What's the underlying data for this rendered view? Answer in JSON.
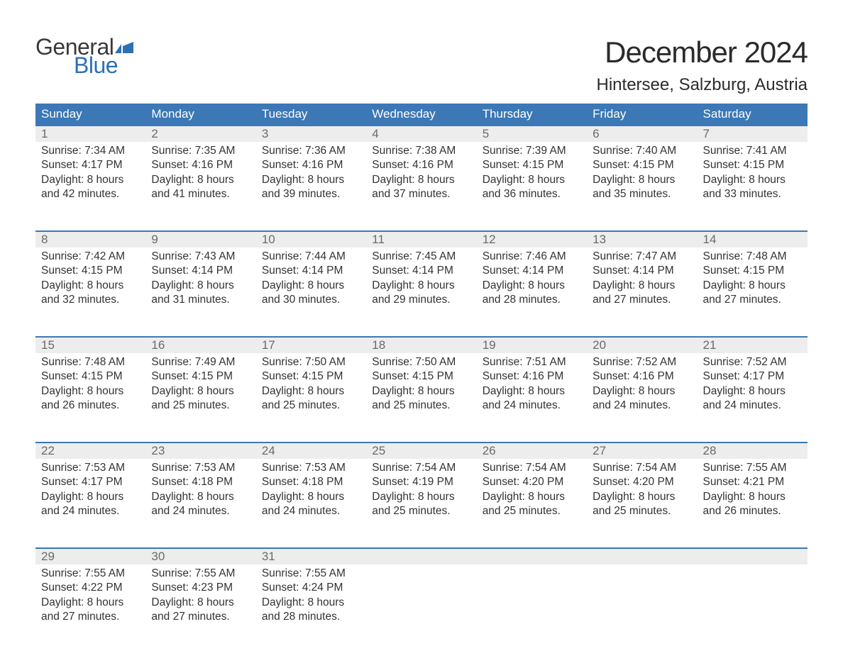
{
  "logo": {
    "general": "General",
    "blue": "Blue"
  },
  "title": "December 2024",
  "location": "Hintersee, Salzburg, Austria",
  "colors": {
    "header_bg": "#3b78b5",
    "header_text": "#ffffff",
    "daynum_bg": "#ededed",
    "daynum_text": "#6a6a6a",
    "border": "#3b78b5",
    "body_text": "#333333",
    "logo_dark": "#3a3a3a",
    "logo_blue": "#2d70b3"
  },
  "day_names": [
    "Sunday",
    "Monday",
    "Tuesday",
    "Wednesday",
    "Thursday",
    "Friday",
    "Saturday"
  ],
  "weeks": [
    [
      {
        "n": "1",
        "sr": "7:34 AM",
        "ss": "4:17 PM",
        "dl": "8 hours",
        "dm": "and 42 minutes."
      },
      {
        "n": "2",
        "sr": "7:35 AM",
        "ss": "4:16 PM",
        "dl": "8 hours",
        "dm": "and 41 minutes."
      },
      {
        "n": "3",
        "sr": "7:36 AM",
        "ss": "4:16 PM",
        "dl": "8 hours",
        "dm": "and 39 minutes."
      },
      {
        "n": "4",
        "sr": "7:38 AM",
        "ss": "4:16 PM",
        "dl": "8 hours",
        "dm": "and 37 minutes."
      },
      {
        "n": "5",
        "sr": "7:39 AM",
        "ss": "4:15 PM",
        "dl": "8 hours",
        "dm": "and 36 minutes."
      },
      {
        "n": "6",
        "sr": "7:40 AM",
        "ss": "4:15 PM",
        "dl": "8 hours",
        "dm": "and 35 minutes."
      },
      {
        "n": "7",
        "sr": "7:41 AM",
        "ss": "4:15 PM",
        "dl": "8 hours",
        "dm": "and 33 minutes."
      }
    ],
    [
      {
        "n": "8",
        "sr": "7:42 AM",
        "ss": "4:15 PM",
        "dl": "8 hours",
        "dm": "and 32 minutes."
      },
      {
        "n": "9",
        "sr": "7:43 AM",
        "ss": "4:14 PM",
        "dl": "8 hours",
        "dm": "and 31 minutes."
      },
      {
        "n": "10",
        "sr": "7:44 AM",
        "ss": "4:14 PM",
        "dl": "8 hours",
        "dm": "and 30 minutes."
      },
      {
        "n": "11",
        "sr": "7:45 AM",
        "ss": "4:14 PM",
        "dl": "8 hours",
        "dm": "and 29 minutes."
      },
      {
        "n": "12",
        "sr": "7:46 AM",
        "ss": "4:14 PM",
        "dl": "8 hours",
        "dm": "and 28 minutes."
      },
      {
        "n": "13",
        "sr": "7:47 AM",
        "ss": "4:14 PM",
        "dl": "8 hours",
        "dm": "and 27 minutes."
      },
      {
        "n": "14",
        "sr": "7:48 AM",
        "ss": "4:15 PM",
        "dl": "8 hours",
        "dm": "and 27 minutes."
      }
    ],
    [
      {
        "n": "15",
        "sr": "7:48 AM",
        "ss": "4:15 PM",
        "dl": "8 hours",
        "dm": "and 26 minutes."
      },
      {
        "n": "16",
        "sr": "7:49 AM",
        "ss": "4:15 PM",
        "dl": "8 hours",
        "dm": "and 25 minutes."
      },
      {
        "n": "17",
        "sr": "7:50 AM",
        "ss": "4:15 PM",
        "dl": "8 hours",
        "dm": "and 25 minutes."
      },
      {
        "n": "18",
        "sr": "7:50 AM",
        "ss": "4:15 PM",
        "dl": "8 hours",
        "dm": "and 25 minutes."
      },
      {
        "n": "19",
        "sr": "7:51 AM",
        "ss": "4:16 PM",
        "dl": "8 hours",
        "dm": "and 24 minutes."
      },
      {
        "n": "20",
        "sr": "7:52 AM",
        "ss": "4:16 PM",
        "dl": "8 hours",
        "dm": "and 24 minutes."
      },
      {
        "n": "21",
        "sr": "7:52 AM",
        "ss": "4:17 PM",
        "dl": "8 hours",
        "dm": "and 24 minutes."
      }
    ],
    [
      {
        "n": "22",
        "sr": "7:53 AM",
        "ss": "4:17 PM",
        "dl": "8 hours",
        "dm": "and 24 minutes."
      },
      {
        "n": "23",
        "sr": "7:53 AM",
        "ss": "4:18 PM",
        "dl": "8 hours",
        "dm": "and 24 minutes."
      },
      {
        "n": "24",
        "sr": "7:53 AM",
        "ss": "4:18 PM",
        "dl": "8 hours",
        "dm": "and 24 minutes."
      },
      {
        "n": "25",
        "sr": "7:54 AM",
        "ss": "4:19 PM",
        "dl": "8 hours",
        "dm": "and 25 minutes."
      },
      {
        "n": "26",
        "sr": "7:54 AM",
        "ss": "4:20 PM",
        "dl": "8 hours",
        "dm": "and 25 minutes."
      },
      {
        "n": "27",
        "sr": "7:54 AM",
        "ss": "4:20 PM",
        "dl": "8 hours",
        "dm": "and 25 minutes."
      },
      {
        "n": "28",
        "sr": "7:55 AM",
        "ss": "4:21 PM",
        "dl": "8 hours",
        "dm": "and 26 minutes."
      }
    ],
    [
      {
        "n": "29",
        "sr": "7:55 AM",
        "ss": "4:22 PM",
        "dl": "8 hours",
        "dm": "and 27 minutes."
      },
      {
        "n": "30",
        "sr": "7:55 AM",
        "ss": "4:23 PM",
        "dl": "8 hours",
        "dm": "and 27 minutes."
      },
      {
        "n": "31",
        "sr": "7:55 AM",
        "ss": "4:24 PM",
        "dl": "8 hours",
        "dm": "and 28 minutes."
      },
      null,
      null,
      null,
      null
    ]
  ],
  "labels": {
    "sunrise": "Sunrise: ",
    "sunset": "Sunset: ",
    "daylight": "Daylight: "
  }
}
